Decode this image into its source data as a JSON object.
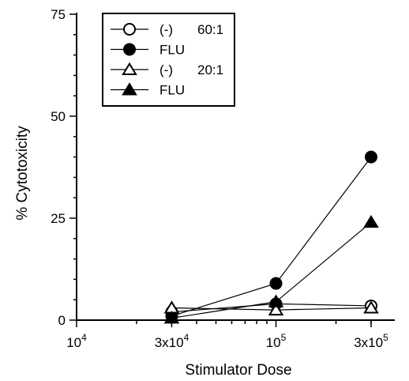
{
  "chart_data": {
    "type": "line",
    "xlabel": "Stimulator Dose",
    "ylabel": "% Cytotoxicity",
    "x_scale": "log",
    "xlim": [
      10000,
      300000
    ],
    "ylim": [
      0,
      75
    ],
    "x_ticks": [
      {
        "value": 10000,
        "base": "10",
        "exp": "4"
      },
      {
        "value": 30000,
        "base": "3x10",
        "exp": "4"
      },
      {
        "value": 100000,
        "base": "10",
        "exp": "5"
      },
      {
        "value": 300000,
        "base": "3x10",
        "exp": "5"
      }
    ],
    "y_ticks": [
      {
        "value": 0,
        "label": "0"
      },
      {
        "value": 25,
        "label": "25"
      },
      {
        "value": 50,
        "label": "50"
      },
      {
        "value": 75,
        "label": "75"
      }
    ],
    "grid": false,
    "legend_position": "top-left",
    "legend": [
      {
        "marker": "circle-open",
        "label": "(-)",
        "ratio": "60:1"
      },
      {
        "marker": "circle-filled",
        "label": "FLU",
        "ratio": ""
      },
      {
        "marker": "triangle-open",
        "label": "(-)",
        "ratio": "20:1"
      },
      {
        "marker": "triangle-filled",
        "label": "FLU",
        "ratio": ""
      }
    ],
    "x": [
      30000,
      100000,
      300000
    ],
    "series": [
      {
        "marker": "circle-open",
        "values": [
          2,
          4,
          3.5
        ]
      },
      {
        "marker": "circle-filled",
        "values": [
          1,
          9,
          40
        ]
      },
      {
        "marker": "triangle-open",
        "values": [
          3,
          2.5,
          3
        ]
      },
      {
        "marker": "triangle-filled",
        "values": [
          0.5,
          4.5,
          24
        ]
      }
    ],
    "colors": {
      "ink": "#000000",
      "background": "#ffffff"
    }
  }
}
